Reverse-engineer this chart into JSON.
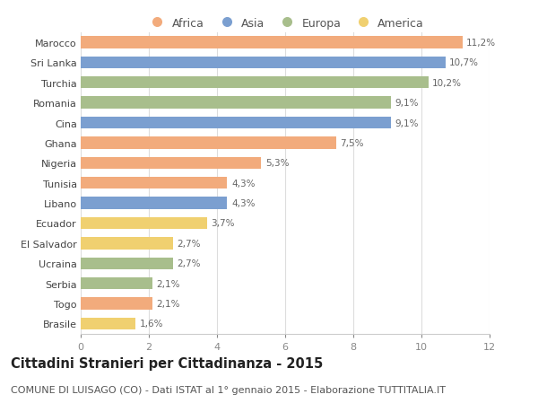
{
  "countries": [
    "Marocco",
    "Sri Lanka",
    "Turchia",
    "Romania",
    "Cina",
    "Ghana",
    "Nigeria",
    "Tunisia",
    "Libano",
    "Ecuador",
    "El Salvador",
    "Ucraina",
    "Serbia",
    "Togo",
    "Brasile"
  ],
  "values": [
    11.2,
    10.7,
    10.2,
    9.1,
    9.1,
    7.5,
    5.3,
    4.3,
    4.3,
    3.7,
    2.7,
    2.7,
    2.1,
    2.1,
    1.6
  ],
  "labels": [
    "11,2%",
    "10,7%",
    "10,2%",
    "9,1%",
    "9,1%",
    "7,5%",
    "5,3%",
    "4,3%",
    "4,3%",
    "3,7%",
    "2,7%",
    "2,7%",
    "2,1%",
    "2,1%",
    "1,6%"
  ],
  "continents": [
    "Africa",
    "Asia",
    "Europa",
    "Europa",
    "Asia",
    "Africa",
    "Africa",
    "Africa",
    "Asia",
    "America",
    "America",
    "Europa",
    "Europa",
    "Africa",
    "America"
  ],
  "colors": {
    "Africa": "#F2AB7C",
    "Asia": "#7B9FD0",
    "Europa": "#A8BE8C",
    "America": "#F0D070"
  },
  "legend_order": [
    "Africa",
    "Asia",
    "Europa",
    "America"
  ],
  "xlim": [
    0,
    12
  ],
  "xticks": [
    0,
    2,
    4,
    6,
    8,
    10,
    12
  ],
  "title": "Cittadini Stranieri per Cittadinanza - 2015",
  "subtitle": "COMUNE DI LUISAGO (CO) - Dati ISTAT al 1° gennaio 2015 - Elaborazione TUTTITALIA.IT",
  "background_color": "#ffffff",
  "bar_height": 0.6,
  "title_fontsize": 10.5,
  "subtitle_fontsize": 8,
  "label_fontsize": 7.5,
  "tick_fontsize": 8,
  "legend_fontsize": 9
}
